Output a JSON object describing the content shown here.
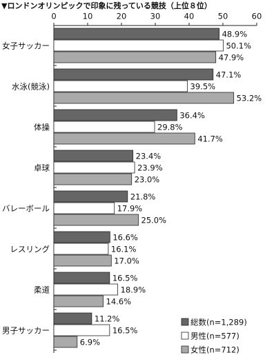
{
  "chart_data": {
    "type": "hbar",
    "title": "▼ロンドンオリンピックで印象に残っている競技（上位８位）",
    "categories": [
      "女子サッカー",
      "水泳(競泳)",
      "体操",
      "卓球",
      "バレーボール",
      "レスリング",
      "柔道",
      "男子サッカー"
    ],
    "series": [
      {
        "name": "総数(n=1,289)",
        "color": "#666666",
        "values": [
          48.9,
          47.1,
          36.4,
          23.4,
          21.8,
          16.6,
          16.5,
          11.2
        ],
        "value_labels": [
          "48.9%",
          "47.1%",
          "36.4%",
          "23.4%",
          "21.8%",
          "16.6%",
          "16.5%",
          "11.2%"
        ]
      },
      {
        "name": "男性(n=577)",
        "color": "#ffffff",
        "values": [
          50.1,
          39.5,
          29.8,
          23.9,
          17.9,
          16.1,
          18.9,
          16.5
        ],
        "value_labels": [
          "50.1%",
          "39.5%",
          "29.8%",
          "23.9%",
          "17.9%",
          "16.1%",
          "18.9%",
          "16.5%"
        ]
      },
      {
        "name": "女性(n=712)",
        "color": "#aaaaaa",
        "values": [
          47.9,
          53.2,
          41.7,
          23.0,
          25.0,
          17.0,
          14.6,
          6.9
        ],
        "value_labels": [
          "47.9%",
          "53.2%",
          "41.7%",
          "23.0%",
          "25.0%",
          "17.0%",
          "14.6%",
          "6.9%"
        ]
      }
    ],
    "xlim": [
      0,
      60
    ],
    "xticks": [
      0,
      10,
      20,
      30,
      40,
      50,
      60
    ]
  }
}
